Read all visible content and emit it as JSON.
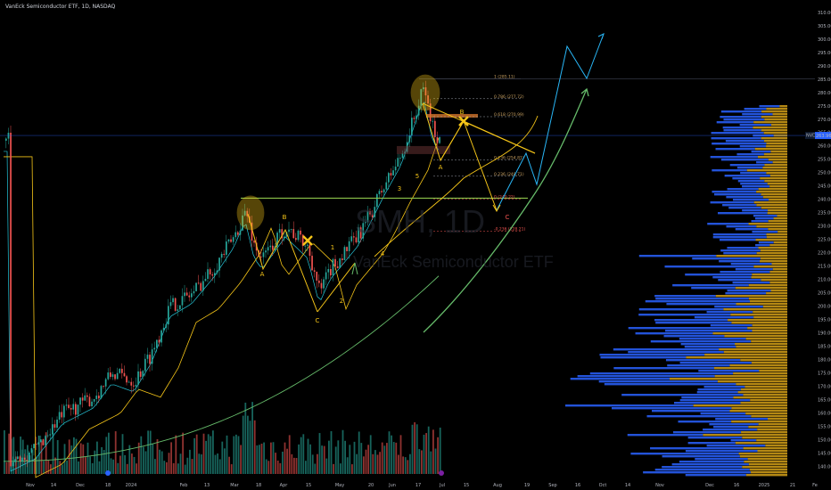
{
  "header": {
    "title": "VanEck Semiconductor ETF, 1D, NASDAQ"
  },
  "watermark": {
    "ticker": "SMH, 1D",
    "name": "VanEck Semiconductor ETF"
  },
  "colors": {
    "background": "#000000",
    "up": "#26a69a",
    "down": "#ef5350",
    "pattern": "#f5c518",
    "projection": "#29b6f6",
    "green_curve": "#66bb6a",
    "volume_profile_blue": "#2962ff",
    "volume_profile_gold": "#d4a017",
    "level_line": "#8bc34a",
    "resistance_box": "#d4762a",
    "price_tag": "#2962ff"
  },
  "chart_data": {
    "type": "candlestick",
    "price_axis": {
      "ylim": [
        136.6,
        313
      ],
      "ticks": [
        "310.00",
        "305.00",
        "300.00",
        "295.00",
        "290.00",
        "285.00",
        "280.00",
        "275.00",
        "270.00",
        "265.00",
        "260.00",
        "255.00",
        "250.00",
        "245.00",
        "240.00",
        "235.00",
        "230.00",
        "225.00",
        "220.00",
        "215.00",
        "210.00",
        "205.00",
        "200.00",
        "195.00",
        "190.00",
        "185.00",
        "180.00",
        "175.00",
        "170.00",
        "165.00",
        "160.00",
        "155.00",
        "150.00",
        "145.00",
        "140.00"
      ],
      "current_price": {
        "label": "263.96",
        "value": 263.96,
        "tag": "NVD"
      }
    },
    "time_axis": {
      "ticks": [
        "Nov",
        "14",
        "Dec",
        "18",
        "2024",
        "Feb",
        "13",
        "Mar",
        "18",
        "Apr",
        "15",
        "May",
        "20",
        "Jun",
        "17",
        "Jul",
        "15",
        "Aug",
        "19",
        "Sep",
        "16",
        "Oct",
        "14",
        "Nov",
        "Dec",
        "16",
        "2025",
        "21",
        "Fe"
      ]
    },
    "fib_levels": [
      {
        "label": "1 (285.11)",
        "value": 285.11
      },
      {
        "label": "0.786 (277.72)",
        "value": 277.72
      },
      {
        "label": "0.618 (270.99)",
        "value": 270.99
      },
      {
        "label": "0.236 (254.81)",
        "value": 254.81
      },
      {
        "label": "0.236 (248.71)",
        "value": 248.71
      },
      {
        "label": "0 (240.22)",
        "value": 240.22
      },
      {
        "label": "-0.236 (228.21)",
        "value": 228.21
      }
    ],
    "wave_labels": [
      {
        "text": "A",
        "color": "yellow"
      },
      {
        "text": "B",
        "color": "yellow"
      },
      {
        "text": "C",
        "color": "yellow"
      },
      {
        "text": "B",
        "color": "yellow"
      },
      {
        "text": "A",
        "color": "yellow"
      },
      {
        "text": "C",
        "color": "red"
      },
      {
        "text": "1",
        "color": "yellow"
      },
      {
        "text": "2",
        "color": "yellow"
      },
      {
        "text": "3",
        "color": "yellow"
      },
      {
        "text": "4",
        "color": "yellow"
      },
      {
        "text": "5",
        "color": "yellow"
      }
    ],
    "key_level": 240.5
  }
}
